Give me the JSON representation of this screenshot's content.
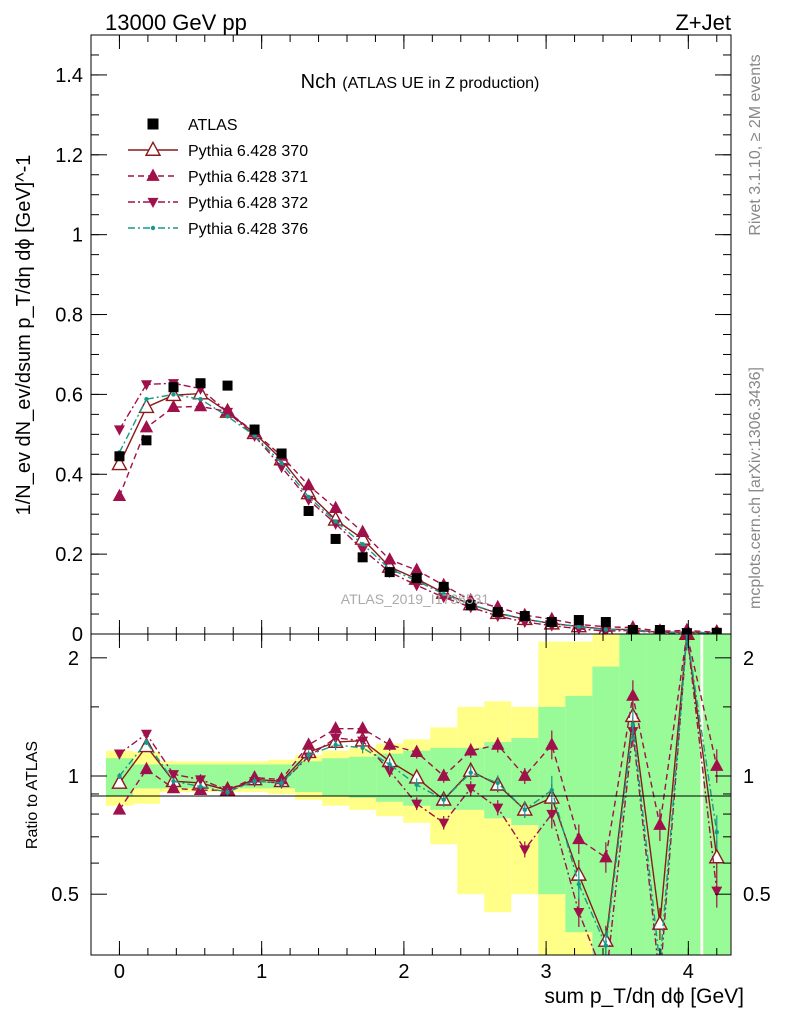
{
  "header": {
    "left": "13000 GeV pp",
    "right": "Z+Jet"
  },
  "side_labels": {
    "rivet": "Rivet 3.1.10, ≥ 2M events",
    "mcplots": "mcplots.cern.ch [arXiv:1306.3436]"
  },
  "colors": {
    "data": "#000000",
    "p370": "#8b1a1a",
    "p371": "#a0104a",
    "p372": "#a0104a",
    "p376": "#179a8a",
    "band_inner": "#98fb98",
    "band_outer": "#ffff88"
  },
  "chart_data": {
    "type": "scatter",
    "title": "Nch",
    "subtitle": "(ATLAS UE in Z production)",
    "watermark": "ATLAS_2019_I1736531",
    "xlabel": "sum p_T/dη dϕ [GeV]",
    "ylabel": "1/N_ev dN_ev/dsum p_T/dη dϕ [GeV]^-1",
    "ratio_ylabel": "Ratio to ATLAS",
    "xlim": [
      -0.2,
      4.3
    ],
    "ylim": [
      0,
      1.5
    ],
    "ratio_ylim": [
      0.35,
      2.3
    ],
    "x_ticks": [
      "0",
      "1",
      "2",
      "3",
      "4"
    ],
    "y_ticks": [
      "0",
      "0.2",
      "0.4",
      "0.6",
      "0.8",
      "1",
      "1.2",
      "1.4"
    ],
    "ratio_ticks": [
      "0.5",
      "1",
      "2"
    ],
    "legend_position": "top-left",
    "x": [
      0,
      0.19,
      0.38,
      0.57,
      0.76,
      0.95,
      1.14,
      1.33,
      1.52,
      1.71,
      1.9,
      2.09,
      2.28,
      2.47,
      2.66,
      2.85,
      3.04,
      3.23,
      3.42,
      3.61,
      3.8,
      3.99,
      4.2
    ],
    "data": {
      "name": "ATLAS",
      "values": [
        0.445,
        0.485,
        0.618,
        0.628,
        0.622,
        0.512,
        0.452,
        0.308,
        0.238,
        0.192,
        0.155,
        0.14,
        0.118,
        0.072,
        0.055,
        0.045,
        0.03,
        0.035,
        0.03,
        0.01,
        0.01,
        0.002,
        0.003
      ]
    },
    "band_inner": [
      0.11,
      0.07,
      0.07,
      0.07,
      0.07,
      0.07,
      0.07,
      0.09,
      0.11,
      0.12,
      0.14,
      0.16,
      0.18,
      0.18,
      0.22,
      0.25,
      0.5,
      0.6,
      0.9,
      1.4,
      1.4,
      1.5,
      1.5
    ],
    "band_outer": [
      0.16,
      0.15,
      0.09,
      0.09,
      0.09,
      0.09,
      0.1,
      0.13,
      0.16,
      0.18,
      0.21,
      0.24,
      0.33,
      0.5,
      0.55,
      0.5,
      1.2,
      1.2,
      1.5,
      1.8,
      1.8,
      1.8,
      1.8
    ],
    "series": [
      {
        "name": "Pythia 6.428 370",
        "marker": "triangle-up-open",
        "line": "solid",
        "values": [
          0.425,
          0.568,
          0.598,
          0.602,
          0.556,
          0.503,
          0.437,
          0.352,
          0.286,
          0.238,
          0.168,
          0.138,
          0.103,
          0.074,
          0.052,
          0.037,
          0.026,
          0.019,
          0.012,
          0.011,
          0.004,
          0.005,
          0.002
        ],
        "ratio": [
          0.96,
          1.19,
          0.97,
          0.96,
          0.92,
          0.98,
          0.97,
          1.15,
          1.22,
          1.23,
          1.09,
          0.99,
          0.87,
          1.03,
          0.95,
          0.82,
          0.88,
          0.56,
          0.38,
          1.42,
          0.42,
          2.3,
          0.62
        ]
      },
      {
        "name": "Pythia 6.428 371",
        "marker": "triangle-up",
        "line": "dashed",
        "values": [
          0.345,
          0.517,
          0.568,
          0.57,
          0.557,
          0.505,
          0.446,
          0.372,
          0.315,
          0.255,
          0.186,
          0.16,
          0.122,
          0.084,
          0.067,
          0.047,
          0.037,
          0.024,
          0.018,
          0.016,
          0.007,
          0.009,
          0.004
        ],
        "ratio": [
          0.82,
          1.04,
          0.93,
          0.92,
          0.92,
          0.99,
          0.98,
          1.2,
          1.32,
          1.32,
          1.2,
          1.15,
          1.0,
          1.16,
          1.2,
          1.0,
          1.2,
          0.69,
          0.62,
          1.6,
          0.75,
          2.3,
          1.06
        ]
      },
      {
        "name": "Pythia 6.428 372",
        "marker": "triangle-down",
        "line": "dash-dot",
        "values": [
          0.512,
          0.625,
          0.628,
          0.614,
          0.556,
          0.496,
          0.418,
          0.336,
          0.276,
          0.212,
          0.155,
          0.122,
          0.092,
          0.067,
          0.045,
          0.03,
          0.021,
          0.013,
          0.007,
          0.009,
          0.002,
          0.004,
          0.001
        ],
        "ratio": [
          1.14,
          1.28,
          1.01,
          0.98,
          0.92,
          0.97,
          0.96,
          1.12,
          1.25,
          1.23,
          1.03,
          0.85,
          0.76,
          0.93,
          0.83,
          0.65,
          0.8,
          0.45,
          0.3,
          1.3,
          0.3,
          2.3,
          0.51
        ]
      },
      {
        "name": "Pythia 6.428 376",
        "marker": "dot",
        "line": "dash-dot",
        "values": [
          0.455,
          0.588,
          0.6,
          0.588,
          0.545,
          0.497,
          0.428,
          0.343,
          0.282,
          0.225,
          0.163,
          0.133,
          0.1,
          0.074,
          0.053,
          0.037,
          0.027,
          0.018,
          0.011,
          0.01,
          0.003,
          0.005,
          0.002
        ],
        "ratio": [
          1.0,
          1.22,
          0.97,
          0.94,
          0.91,
          0.97,
          0.96,
          1.13,
          1.2,
          1.18,
          1.07,
          0.95,
          0.87,
          1.02,
          0.96,
          0.82,
          0.92,
          0.53,
          0.37,
          1.35,
          0.33,
          2.3,
          0.72
        ]
      }
    ]
  }
}
